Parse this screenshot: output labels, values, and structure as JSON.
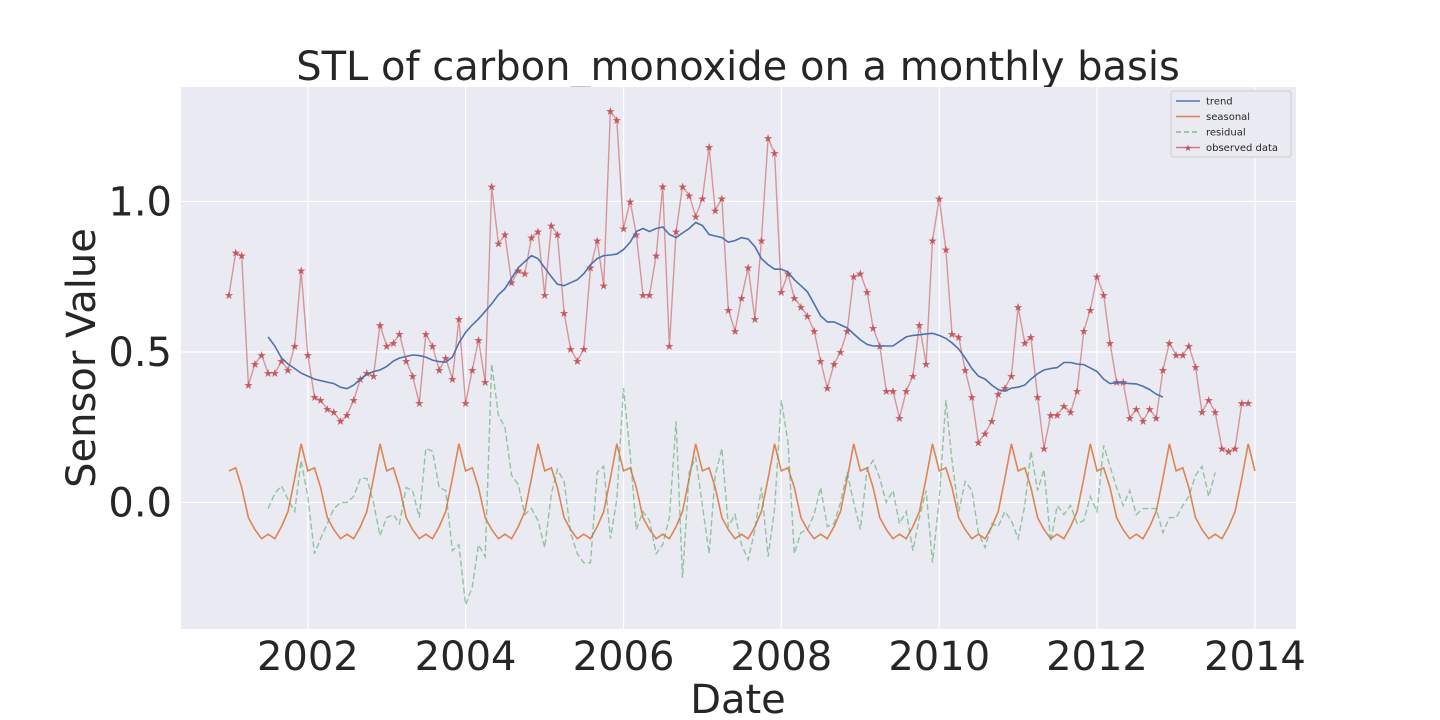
{
  "chart_data": {
    "type": "line",
    "title": "STL of carbon_monoxide on a monthly basis",
    "xlabel": "Date",
    "ylabel": "Sensor Value",
    "xlim": [
      "2000-05-24",
      "2014-07-10"
    ],
    "ylim": [
      -0.42,
      1.38
    ],
    "xticks": [
      "2002",
      "2004",
      "2006",
      "2008",
      "2010",
      "2012",
      "2014"
    ],
    "yticks": [
      "0.0",
      "0.5",
      "1.0"
    ],
    "grid": true,
    "legend_position": "top-right",
    "colors": {
      "trend": "#4c72b0",
      "seasonal": "#dd8452",
      "residual": "#55a868",
      "observed": "#c44e52",
      "background": "#eaeaf2",
      "grid": "#ffffff"
    },
    "series": [
      {
        "name": "trend",
        "start": "2001-07",
        "values": [
          0.55,
          0.52,
          0.48,
          0.46,
          0.445,
          0.43,
          0.42,
          0.41,
          0.405,
          0.4,
          0.395,
          0.383,
          0.378,
          0.39,
          0.41,
          0.425,
          0.435,
          0.44,
          0.452,
          0.47,
          0.48,
          0.485,
          0.49,
          0.488,
          0.483,
          0.473,
          0.468,
          0.466,
          0.483,
          0.53,
          0.565,
          0.59,
          0.61,
          0.635,
          0.66,
          0.69,
          0.71,
          0.745,
          0.78,
          0.8,
          0.82,
          0.81,
          0.78,
          0.75,
          0.725,
          0.72,
          0.73,
          0.74,
          0.76,
          0.79,
          0.81,
          0.82,
          0.822,
          0.825,
          0.84,
          0.865,
          0.9,
          0.91,
          0.9,
          0.91,
          0.915,
          0.89,
          0.88,
          0.895,
          0.91,
          0.93,
          0.92,
          0.89,
          0.885,
          0.88,
          0.865,
          0.87,
          0.88,
          0.875,
          0.85,
          0.81,
          0.79,
          0.775,
          0.775,
          0.765,
          0.74,
          0.72,
          0.7,
          0.66,
          0.62,
          0.6,
          0.6,
          0.59,
          0.58,
          0.56,
          0.54,
          0.525,
          0.52,
          0.52,
          0.52,
          0.52,
          0.535,
          0.55,
          0.555,
          0.557,
          0.56,
          0.562,
          0.555,
          0.545,
          0.53,
          0.51,
          0.48,
          0.445,
          0.42,
          0.41,
          0.39,
          0.375,
          0.37,
          0.38,
          0.383,
          0.39,
          0.41,
          0.428,
          0.44,
          0.445,
          0.448,
          0.465,
          0.465,
          0.46,
          0.458,
          0.447,
          0.435,
          0.41,
          0.395,
          0.398,
          0.397,
          0.395,
          0.394,
          0.386,
          0.375,
          0.36,
          0.35
        ]
      },
      {
        "name": "seasonal",
        "start": "2001-01",
        "values": [
          0.105,
          0.115,
          0.05,
          -0.05,
          -0.09,
          -0.12,
          -0.105,
          -0.12,
          -0.08,
          -0.03,
          0.08,
          0.195
        ]
      },
      {
        "name": "residual",
        "start": "2001-07",
        "values": [
          -0.02,
          0.03,
          0.055,
          0.01,
          -0.03,
          0.14,
          0.02,
          -0.17,
          -0.12,
          -0.07,
          -0.02,
          0.0,
          0.0,
          0.02,
          0.08,
          0.08,
          0.0,
          -0.11,
          -0.05,
          -0.04,
          -0.07,
          0.05,
          0.04,
          -0.05,
          0.18,
          0.17,
          0.05,
          0.04,
          -0.16,
          -0.14,
          -0.34,
          -0.28,
          -0.14,
          -0.18,
          0.46,
          0.29,
          0.25,
          0.09,
          0.06,
          -0.04,
          -0.02,
          -0.06,
          -0.15,
          0.03,
          0.11,
          0.07,
          -0.1,
          -0.17,
          -0.2,
          -0.2,
          0.1,
          0.12,
          -0.12,
          0.01,
          0.38,
          0.16,
          -0.09,
          -0.03,
          -0.06,
          -0.17,
          -0.14,
          -0.05,
          0.27,
          -0.25,
          0.1,
          0.15,
          -0.01,
          -0.17,
          0.09,
          0.18,
          -0.08,
          -0.04,
          -0.14,
          -0.19,
          -0.09,
          0.05,
          -0.18,
          -0.02,
          0.34,
          0.2,
          -0.17,
          -0.1,
          -0.09,
          -0.04,
          0.05,
          -0.08,
          -0.07,
          0.0,
          0.1,
          0.0,
          -0.09,
          0.11,
          0.14,
          0.08,
          0.0,
          0.04,
          -0.07,
          -0.03,
          -0.16,
          -0.05,
          0.04,
          -0.2,
          0.01,
          0.34,
          0.14,
          -0.03,
          0.07,
          0.04,
          -0.1,
          -0.15,
          -0.07,
          -0.08,
          -0.03,
          -0.06,
          -0.12,
          -0.01,
          0.17,
          0.04,
          0.11,
          -0.13,
          -0.01,
          -0.04,
          -0.01,
          -0.07,
          -0.06,
          0.02,
          -0.03,
          0.19,
          0.12,
          0.05,
          -0.01,
          0.04,
          -0.04,
          -0.02,
          -0.02,
          -0.02,
          -0.1,
          -0.05,
          -0.05,
          -0.01,
          0.02,
          0.09,
          0.12,
          0.02,
          0.1
        ]
      },
      {
        "name": "observed data",
        "start": "2001-01",
        "values": [
          0.69,
          0.83,
          0.82,
          0.39,
          0.46,
          0.49,
          0.43,
          0.43,
          0.47,
          0.44,
          0.52,
          0.77,
          0.49,
          0.35,
          0.34,
          0.31,
          0.3,
          0.27,
          0.29,
          0.34,
          0.41,
          0.43,
          0.42,
          0.59,
          0.52,
          0.53,
          0.56,
          0.47,
          0.42,
          0.33,
          0.56,
          0.52,
          0.44,
          0.48,
          0.41,
          0.61,
          0.33,
          0.44,
          0.54,
          0.4,
          1.05,
          0.86,
          0.89,
          0.73,
          0.77,
          0.76,
          0.88,
          0.9,
          0.69,
          0.92,
          0.89,
          0.63,
          0.51,
          0.47,
          0.51,
          0.78,
          0.87,
          0.72,
          1.3,
          1.27,
          0.91,
          1.0,
          0.89,
          0.69,
          0.69,
          0.82,
          1.05,
          0.52,
          0.9,
          1.05,
          1.02,
          0.95,
          1.01,
          1.18,
          0.97,
          1.01,
          0.64,
          0.57,
          0.68,
          0.78,
          0.61,
          0.87,
          1.21,
          1.16,
          0.7,
          0.76,
          0.68,
          0.65,
          0.62,
          0.57,
          0.47,
          0.38,
          0.46,
          0.5,
          0.57,
          0.75,
          0.76,
          0.7,
          0.58,
          0.52,
          0.37,
          0.37,
          0.28,
          0.37,
          0.42,
          0.59,
          0.46,
          0.87,
          1.01,
          0.84,
          0.56,
          0.55,
          0.44,
          0.35,
          0.2,
          0.23,
          0.27,
          0.36,
          0.38,
          0.42,
          0.65,
          0.53,
          0.55,
          0.35,
          0.18,
          0.29,
          0.29,
          0.32,
          0.3,
          0.37,
          0.57,
          0.64,
          0.75,
          0.69,
          0.53,
          0.4,
          0.4,
          0.28,
          0.31,
          0.27,
          0.31,
          0.28,
          0.44,
          0.53,
          0.49,
          0.49,
          0.52,
          0.45,
          0.3,
          0.34,
          0.3,
          0.18,
          0.17,
          0.18,
          0.33,
          0.33
        ]
      }
    ]
  }
}
